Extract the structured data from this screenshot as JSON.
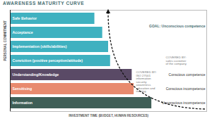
{
  "chart_data": {
    "type": "bar",
    "orientation": "horizontal",
    "title": "AWARENESS MATURITY CURVE",
    "xlabel": "INVESTMENT TIME (BUDGET, HUMAN RESOURCES)",
    "ylabel": "PERSONAL COMMITMENT",
    "categories": [
      "Safe Behavior",
      "Acceptance",
      "Implementation (skills/abilities)",
      "Conviction (positive perception/attitude)",
      "Understanding/Knowledge",
      "Sensitising",
      "Information"
    ],
    "values": [
      43,
      47,
      50,
      51,
      62,
      63,
      72
    ],
    "colors": [
      "#3fb1c0",
      "#3fb1c0",
      "#3fb1c0",
      "#3fb1c0",
      "#5a4a66",
      "#e88a6e",
      "#3f5f57"
    ],
    "xlim": [
      0,
      100
    ],
    "tick_labels": false,
    "annotations": [
      {
        "text": "GOAL: Unconscious competence",
        "category": "Acceptance"
      },
      {
        "text": "COVERED BY:\nsales customer\nof the company",
        "category": "Conviction (positive perception/attitude)"
      },
      {
        "text": "COVERED BY:\nISO 27001\ninformation\nsecurity\nawareness\neducation and\ntraining",
        "category": "Understanding/Knowledge"
      },
      {
        "text": "Conscious competence",
        "category": "Understanding/Knowledge"
      },
      {
        "text": "Conscious incompetence",
        "category": "Sensitising"
      },
      {
        "text": "Unconscious incompetence",
        "category": "Information"
      }
    ]
  }
}
